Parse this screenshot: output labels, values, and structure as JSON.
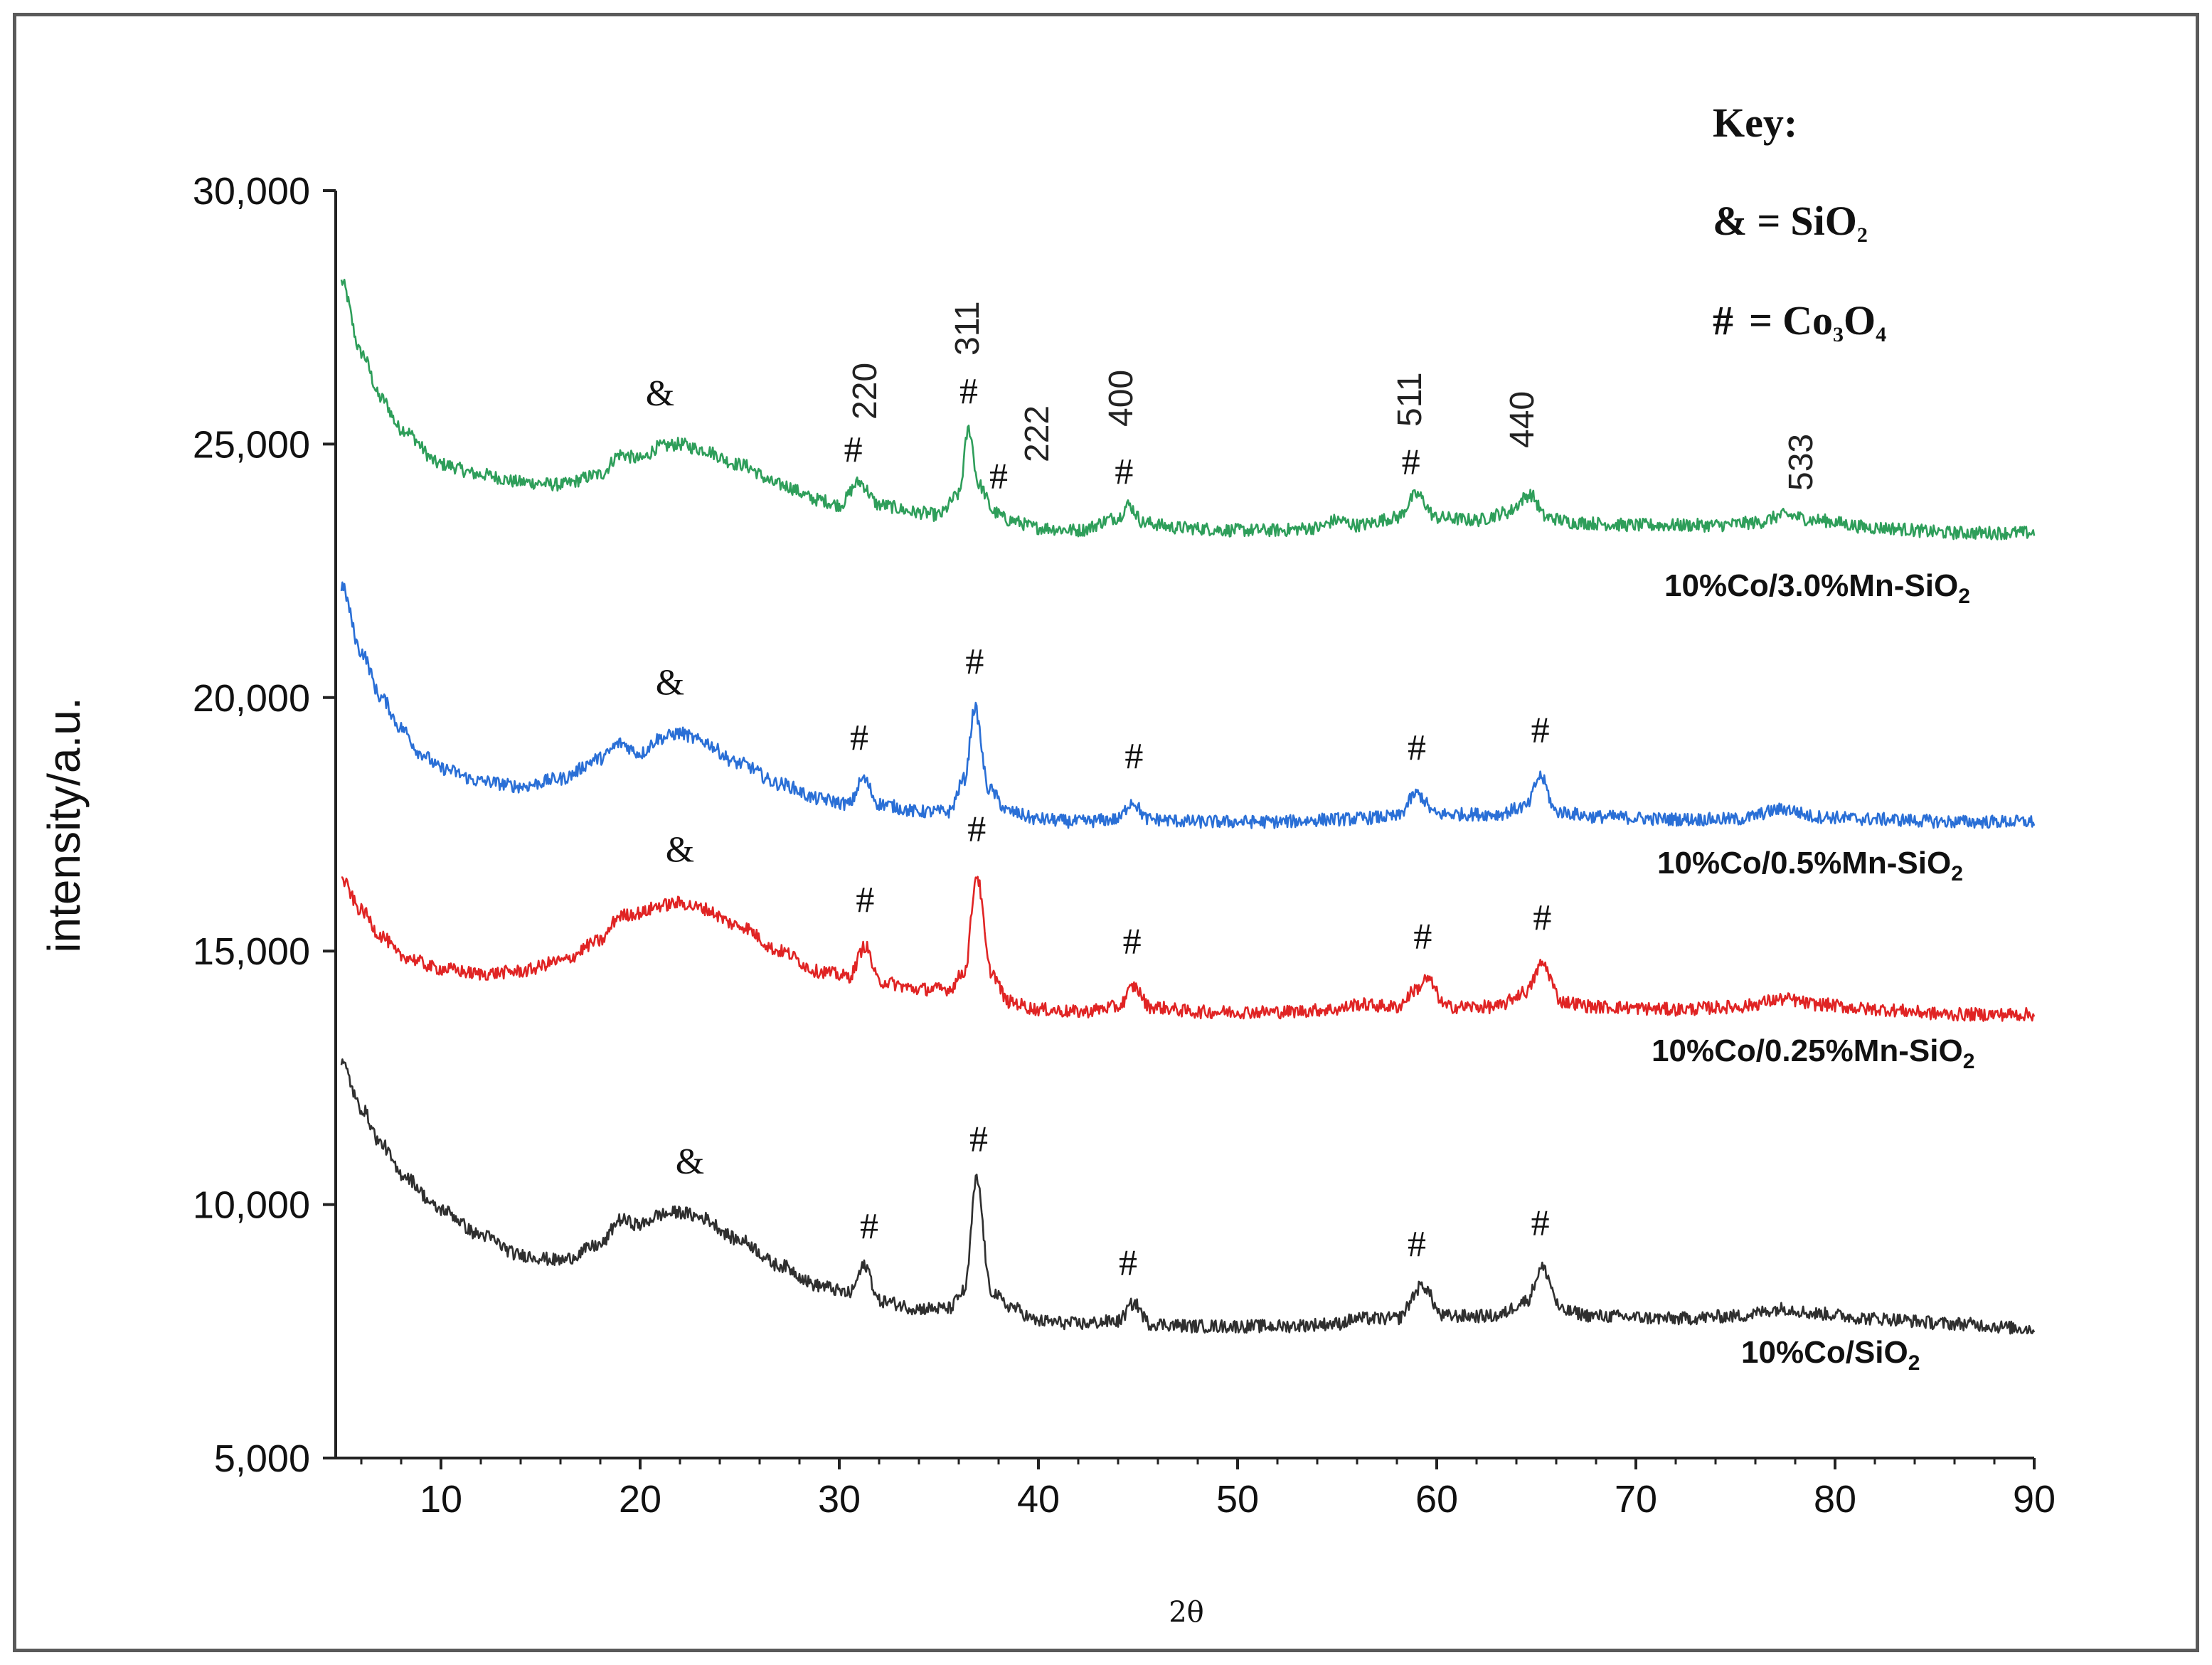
{
  "chart_data": {
    "type": "line",
    "xlabel": "2θ",
    "ylabel": "intensity/a.u.",
    "xlim": [
      5,
      90
    ],
    "ylim": [
      5000,
      30000
    ],
    "x_ticks": [
      "10",
      "20",
      "30",
      "40",
      "50",
      "60",
      "70",
      "80",
      "90"
    ],
    "y_ticks": [
      "5,000",
      "10,000",
      "15,000",
      "20,000",
      "25,000",
      "30,000"
    ],
    "key": {
      "title": "Key:",
      "amp": {
        "symbol": "&",
        "eq": "=",
        "formula": "SiO",
        "sub": "2"
      },
      "hash": {
        "symbol": "#",
        "eq": "=",
        "f1": "Co",
        "s1": "3",
        "f2": "O",
        "s2": "4"
      }
    },
    "miller_indices": [
      "220",
      "311",
      "222",
      "400",
      "511",
      "440",
      "533"
    ],
    "series": [
      {
        "name": "10%Co/3.0%Mn-SiO2",
        "name_main": "10%Co/3.0%Mn-SiO",
        "name_sub": "2",
        "color": "#2e9e5a",
        "points": [
          [
            5,
            28200
          ],
          [
            6,
            26800
          ],
          [
            7,
            25900
          ],
          [
            8,
            25300
          ],
          [
            10,
            24600
          ],
          [
            12,
            24400
          ],
          [
            14,
            24250
          ],
          [
            16,
            24200
          ],
          [
            18,
            24400
          ],
          [
            19,
            24800
          ],
          [
            20,
            24700
          ],
          [
            21,
            24950
          ],
          [
            22,
            25000
          ],
          [
            23,
            24900
          ],
          [
            25,
            24600
          ],
          [
            27,
            24200
          ],
          [
            29,
            23900
          ],
          [
            30,
            23800
          ],
          [
            31,
            24250
          ],
          [
            32,
            23800
          ],
          [
            34,
            23650
          ],
          [
            35,
            23600
          ],
          [
            36,
            24000
          ],
          [
            36.5,
            25300
          ],
          [
            37,
            24200
          ],
          [
            37.8,
            23650
          ],
          [
            38.5,
            23500
          ],
          [
            40,
            23350
          ],
          [
            42,
            23300
          ],
          [
            44,
            23550
          ],
          [
            44.5,
            23800
          ],
          [
            45.3,
            23450
          ],
          [
            47,
            23350
          ],
          [
            50,
            23300
          ],
          [
            52,
            23300
          ],
          [
            54,
            23350
          ],
          [
            55,
            23500
          ],
          [
            56,
            23400
          ],
          [
            58,
            23550
          ],
          [
            59,
            24000
          ],
          [
            60,
            23550
          ],
          [
            62,
            23500
          ],
          [
            63.5,
            23650
          ],
          [
            64.7,
            24000
          ],
          [
            65.5,
            23550
          ],
          [
            67,
            23450
          ],
          [
            70,
            23400
          ],
          [
            74,
            23400
          ],
          [
            76,
            23450
          ],
          [
            77.5,
            23600
          ],
          [
            79,
            23500
          ],
          [
            82,
            23350
          ],
          [
            86,
            23250
          ],
          [
            90,
            23250
          ]
        ],
        "peak_labels": [
          [
            21,
            "&",
            false
          ],
          [
            30.7,
            "#",
            true
          ],
          [
            36.5,
            "#",
            true
          ],
          [
            38,
            "#",
            true
          ],
          [
            44.3,
            "#",
            true
          ],
          [
            58.7,
            "#",
            true
          ]
        ]
      },
      {
        "name": "10%Co/0.5%Mn-SiO2",
        "name_main": "10%Co/0.5%Mn-SiO",
        "name_sub": "2",
        "color": "#2a6fd6",
        "points": [
          [
            5,
            22200
          ],
          [
            6,
            20900
          ],
          [
            7,
            20000
          ],
          [
            8,
            19400
          ],
          [
            9,
            18900
          ],
          [
            10,
            18600
          ],
          [
            12,
            18350
          ],
          [
            14,
            18250
          ],
          [
            16,
            18400
          ],
          [
            18,
            18800
          ],
          [
            19,
            19100
          ],
          [
            20,
            18900
          ],
          [
            21,
            19200
          ],
          [
            22,
            19300
          ],
          [
            23,
            19150
          ],
          [
            25,
            18700
          ],
          [
            27,
            18300
          ],
          [
            29,
            18000
          ],
          [
            30.5,
            17900
          ],
          [
            31.2,
            18400
          ],
          [
            32,
            17900
          ],
          [
            34,
            17750
          ],
          [
            35.5,
            17750
          ],
          [
            36.3,
            18400
          ],
          [
            36.8,
            19800
          ],
          [
            37.5,
            18200
          ],
          [
            38.5,
            17750
          ],
          [
            40,
            17600
          ],
          [
            42,
            17550
          ],
          [
            44,
            17600
          ],
          [
            44.7,
            17950
          ],
          [
            45.5,
            17600
          ],
          [
            48,
            17550
          ],
          [
            52,
            17550
          ],
          [
            55,
            17600
          ],
          [
            58,
            17650
          ],
          [
            59,
            18100
          ],
          [
            60,
            17700
          ],
          [
            63,
            17700
          ],
          [
            64.5,
            17850
          ],
          [
            65.2,
            18450
          ],
          [
            66,
            17750
          ],
          [
            68,
            17650
          ],
          [
            72,
            17600
          ],
          [
            75,
            17600
          ],
          [
            77.5,
            17800
          ],
          [
            79,
            17650
          ],
          [
            82,
            17600
          ],
          [
            86,
            17550
          ],
          [
            90,
            17550
          ]
        ],
        "peak_labels": [
          [
            21.5,
            "&",
            false
          ],
          [
            31,
            "#",
            false
          ],
          [
            36.8,
            "#",
            false
          ],
          [
            44.8,
            "#",
            false
          ],
          [
            59,
            "#",
            false
          ],
          [
            65.2,
            "#",
            false
          ]
        ]
      },
      {
        "name": "10%Co/0.25%Mn-SiO2",
        "name_main": "10%Co/0.25%Mn-SiO",
        "name_sub": "2",
        "color": "#e02424",
        "points": [
          [
            5,
            16400
          ],
          [
            6,
            15800
          ],
          [
            7,
            15300
          ],
          [
            8,
            14900
          ],
          [
            10,
            14650
          ],
          [
            12,
            14550
          ],
          [
            14,
            14600
          ],
          [
            16,
            14800
          ],
          [
            18,
            15200
          ],
          [
            19,
            15700
          ],
          [
            20,
            15750
          ],
          [
            21,
            15900
          ],
          [
            22,
            15950
          ],
          [
            23,
            15850
          ],
          [
            25,
            15500
          ],
          [
            27,
            15000
          ],
          [
            29,
            14600
          ],
          [
            30.5,
            14500
          ],
          [
            31.3,
            15100
          ],
          [
            32,
            14400
          ],
          [
            34,
            14250
          ],
          [
            35.5,
            14250
          ],
          [
            36.3,
            14600
          ],
          [
            36.9,
            16500
          ],
          [
            37.6,
            14600
          ],
          [
            38.5,
            14000
          ],
          [
            40,
            13850
          ],
          [
            42,
            13800
          ],
          [
            44,
            13900
          ],
          [
            44.8,
            14300
          ],
          [
            45.6,
            13900
          ],
          [
            48,
            13800
          ],
          [
            52,
            13800
          ],
          [
            55,
            13850
          ],
          [
            56,
            13950
          ],
          [
            58,
            13900
          ],
          [
            59,
            14250
          ],
          [
            59.5,
            14450
          ],
          [
            60.5,
            13900
          ],
          [
            63,
            13900
          ],
          [
            64.5,
            14200
          ],
          [
            65.3,
            14750
          ],
          [
            66.3,
            14000
          ],
          [
            68,
            13900
          ],
          [
            72,
            13850
          ],
          [
            75,
            13900
          ],
          [
            77.5,
            14050
          ],
          [
            79,
            13950
          ],
          [
            82,
            13850
          ],
          [
            86,
            13750
          ],
          [
            90,
            13750
          ]
        ],
        "peak_labels": [
          [
            22,
            "&",
            false
          ],
          [
            31.3,
            "#",
            false
          ],
          [
            36.9,
            "#",
            false
          ],
          [
            44.7,
            "#",
            false
          ],
          [
            59.3,
            "#",
            false
          ],
          [
            65.3,
            "#",
            false
          ]
        ]
      },
      {
        "name": "10%Co/SiO2",
        "name_main": "10%Co/SiO",
        "name_sub": "2",
        "color": "#2f2f2f",
        "points": [
          [
            5,
            12800
          ],
          [
            6,
            11900
          ],
          [
            7,
            11200
          ],
          [
            8,
            10600
          ],
          [
            10,
            9900
          ],
          [
            12,
            9400
          ],
          [
            14,
            9000
          ],
          [
            16,
            8900
          ],
          [
            18,
            9200
          ],
          [
            19,
            9700
          ],
          [
            20,
            9600
          ],
          [
            21,
            9800
          ],
          [
            22,
            9850
          ],
          [
            23,
            9750
          ],
          [
            25,
            9300
          ],
          [
            27,
            8800
          ],
          [
            29,
            8400
          ],
          [
            30.5,
            8250
          ],
          [
            31.3,
            8800
          ],
          [
            32,
            8100
          ],
          [
            34,
            7950
          ],
          [
            35.5,
            7950
          ],
          [
            36.3,
            8300
          ],
          [
            36.9,
            10500
          ],
          [
            37.6,
            8300
          ],
          [
            38.5,
            8000
          ],
          [
            40,
            7700
          ],
          [
            42,
            7650
          ],
          [
            44,
            7700
          ],
          [
            44.8,
            8050
          ],
          [
            45.6,
            7650
          ],
          [
            48,
            7600
          ],
          [
            52,
            7600
          ],
          [
            55,
            7650
          ],
          [
            56,
            7750
          ],
          [
            58,
            7750
          ],
          [
            59.3,
            8400
          ],
          [
            60.3,
            7800
          ],
          [
            63,
            7800
          ],
          [
            64.5,
            8100
          ],
          [
            65.3,
            8750
          ],
          [
            66.3,
            7900
          ],
          [
            68,
            7800
          ],
          [
            72,
            7750
          ],
          [
            75,
            7800
          ],
          [
            77.5,
            7950
          ],
          [
            79,
            7850
          ],
          [
            82,
            7750
          ],
          [
            86,
            7650
          ],
          [
            90,
            7550
          ]
        ],
        "peak_labels": [
          [
            22.5,
            "&",
            false
          ],
          [
            31.5,
            "#",
            false
          ],
          [
            37,
            "#",
            false
          ],
          [
            44.5,
            "#",
            false
          ],
          [
            59,
            "#",
            false
          ],
          [
            65.2,
            "#",
            false
          ]
        ]
      }
    ]
  }
}
